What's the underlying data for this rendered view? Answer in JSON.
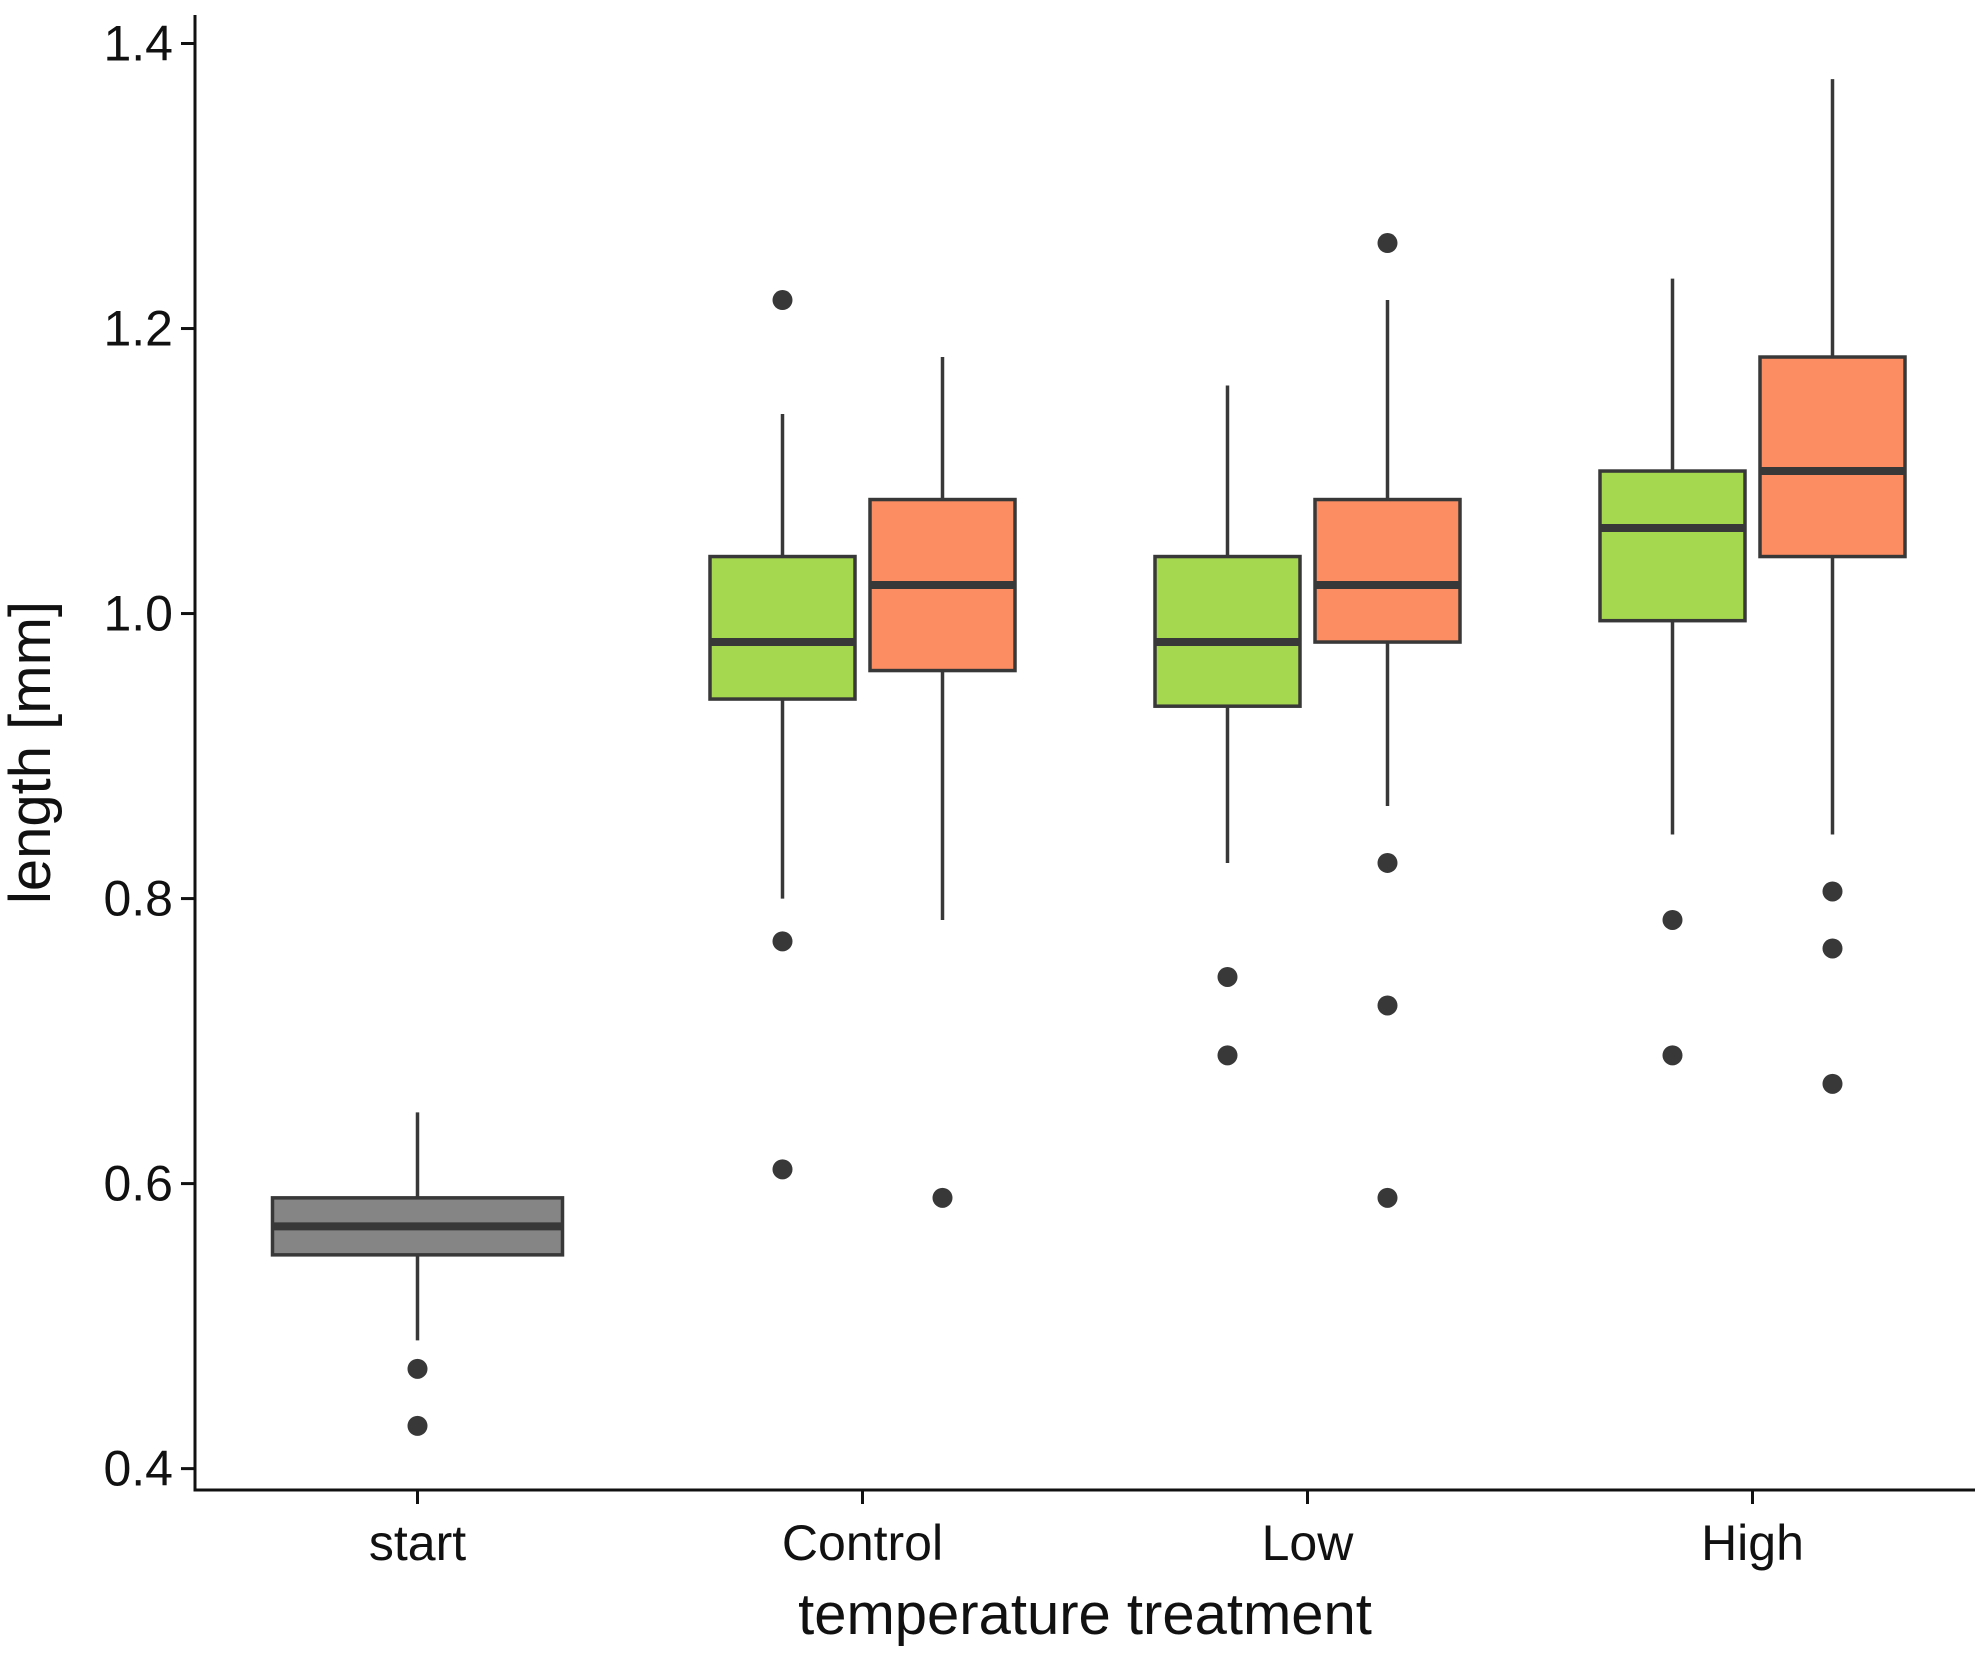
{
  "chart_data": {
    "type": "boxplot",
    "title": "",
    "xlabel": "temperature treatment",
    "ylabel": "length [mm]",
    "ylim": [
      0.385,
      1.42
    ],
    "yticks": [
      0.4,
      0.6,
      0.8,
      1.0,
      1.2,
      1.4
    ],
    "ytick_labels": [
      "0.4",
      "0.6",
      "0.8",
      "1.0",
      "1.2",
      "1.4"
    ],
    "categories": [
      "start",
      "Control",
      "Low",
      "High"
    ],
    "legend": "none",
    "grid": false,
    "colors": {
      "start": "#858585",
      "series_a": "#a6d84f",
      "series_b": "#fc8d62",
      "stroke": "#383838"
    },
    "boxes": [
      {
        "category": "start",
        "group": "start",
        "whisker_low": 0.49,
        "q1": 0.55,
        "median": 0.57,
        "q3": 0.59,
        "whisker_high": 0.65,
        "outliers": [
          0.47,
          0.43
        ]
      },
      {
        "category": "Control",
        "group": "series_a",
        "whisker_low": 0.8,
        "q1": 0.94,
        "median": 0.98,
        "q3": 1.04,
        "whisker_high": 1.14,
        "outliers": [
          1.22,
          0.77,
          0.61
        ]
      },
      {
        "category": "Control",
        "group": "series_b",
        "whisker_low": 0.785,
        "q1": 0.96,
        "median": 1.02,
        "q3": 1.08,
        "whisker_high": 1.18,
        "outliers": [
          0.59
        ]
      },
      {
        "category": "Low",
        "group": "series_a",
        "whisker_low": 0.825,
        "q1": 0.935,
        "median": 0.98,
        "q3": 1.04,
        "whisker_high": 1.16,
        "outliers": [
          0.745,
          0.69
        ]
      },
      {
        "category": "Low",
        "group": "series_b",
        "whisker_low": 0.865,
        "q1": 0.98,
        "median": 1.02,
        "q3": 1.08,
        "whisker_high": 1.22,
        "outliers": [
          1.26,
          0.825,
          0.725,
          0.59
        ]
      },
      {
        "category": "High",
        "group": "series_a",
        "whisker_low": 0.845,
        "q1": 0.995,
        "median": 1.06,
        "q3": 1.1,
        "whisker_high": 1.235,
        "outliers": [
          0.785,
          0.69
        ]
      },
      {
        "category": "High",
        "group": "series_b",
        "whisker_low": 0.845,
        "q1": 1.04,
        "median": 1.1,
        "q3": 1.18,
        "whisker_high": 1.375,
        "outliers": [
          0.805,
          0.765,
          0.67
        ]
      }
    ]
  }
}
